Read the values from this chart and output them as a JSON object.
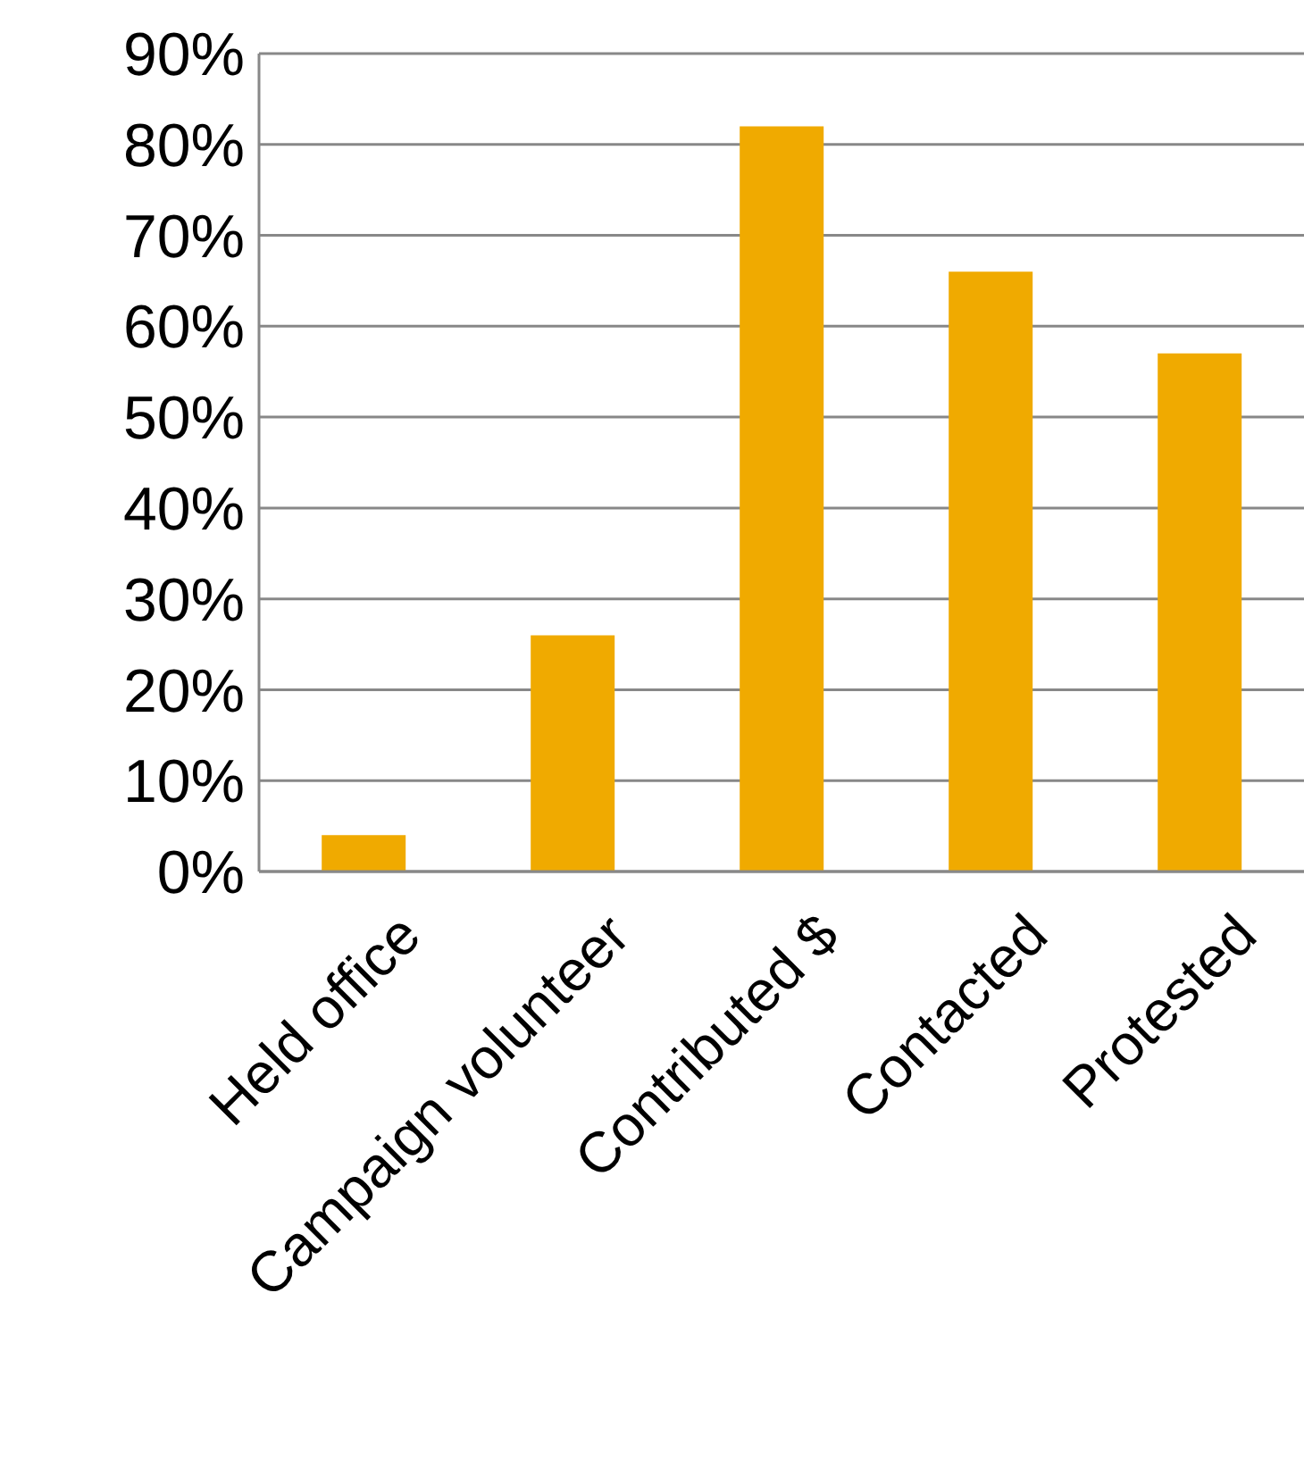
{
  "chart_data": {
    "type": "bar",
    "categories": [
      "Held office",
      "Campaign volunteer",
      "Contributed $",
      "Contacted",
      "Protested"
    ],
    "values": [
      4,
      26,
      82,
      66,
      57
    ],
    "color": "#f0aa00",
    "ylim": [
      0,
      90
    ],
    "yticks": [
      {
        "value": 0,
        "label": "0%"
      },
      {
        "value": 10,
        "label": "10%"
      },
      {
        "value": 20,
        "label": "20%"
      },
      {
        "value": 30,
        "label": "30%"
      },
      {
        "value": 40,
        "label": "40%"
      },
      {
        "value": 50,
        "label": "50%"
      },
      {
        "value": 60,
        "label": "60%"
      },
      {
        "value": 70,
        "label": "70%"
      },
      {
        "value": 80,
        "label": "80%"
      },
      {
        "value": 90,
        "label": "90%"
      }
    ],
    "grid": "y",
    "legend": false
  }
}
